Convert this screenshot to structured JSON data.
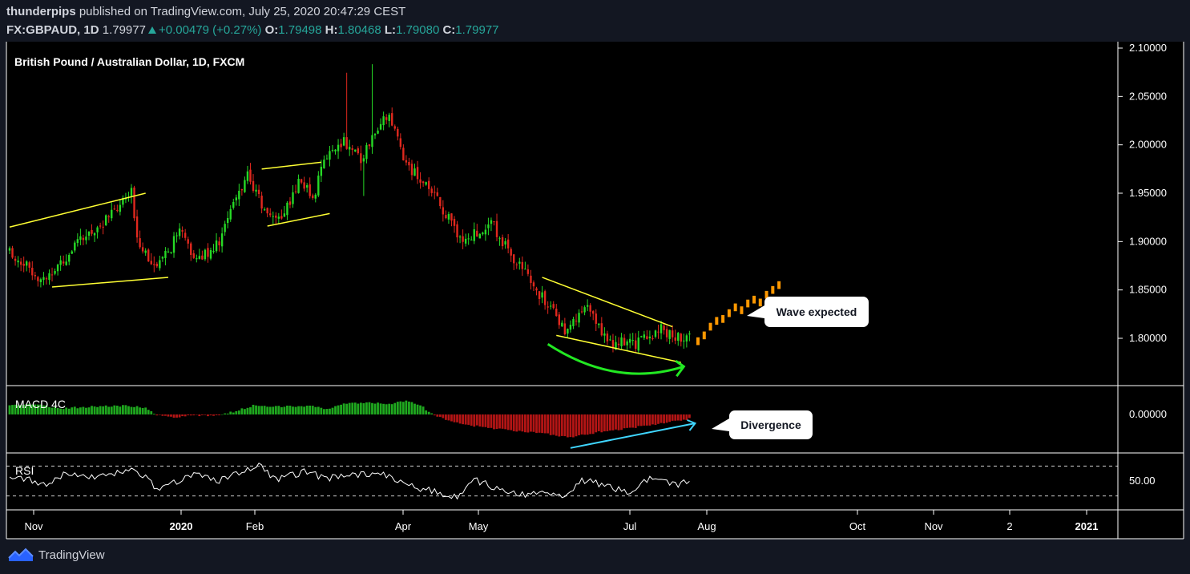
{
  "header": {
    "user": "thunderpips",
    "published_text": "published on TradingView.com, July 25, 2020 20:47:29 CEST",
    "symbol": "FX:GBPAUD, 1D",
    "last": "1.79977",
    "change": "+0.00479 (+0.27%)",
    "o_label": "O:",
    "o": "1.79498",
    "h_label": "H:",
    "h": "1.80468",
    "l_label": "L:",
    "l": "1.79080",
    "c_label": "C:",
    "c": "1.79977"
  },
  "brand": {
    "name": "TradingView"
  },
  "colors": {
    "bg": "#000000",
    "frame": "#131722",
    "up": "#26d926",
    "down": "#e0281e",
    "macd_up": "#1fa81f",
    "macd_down": "#b31515",
    "trend": "#ffff33",
    "forecast": "#ff9800",
    "arc": "#22e822",
    "divergence": "#3fd6ff",
    "rsi": "#ffffff"
  },
  "chart_data": {
    "type": "candlestick",
    "title": "British Pound / Australian Dollar, 1D, FXCM",
    "price_axis": [
      "2.10000",
      "2.05000",
      "2.00000",
      "1.95000",
      "1.90000",
      "1.85000",
      "1.80000"
    ],
    "ylim": [
      1.76,
      2.1
    ],
    "x_ticks": [
      "Nov",
      "2020",
      "Feb",
      "Apr",
      "May",
      "Jul",
      "Aug",
      "Oct",
      "Nov",
      "2",
      "2021"
    ],
    "anchors": [
      {
        "i": 0,
        "close": 1.89
      },
      {
        "i": 12,
        "close": 1.86
      },
      {
        "i": 25,
        "close": 1.9
      },
      {
        "i": 37,
        "close": 1.93
      },
      {
        "i": 43,
        "close": 1.95
      },
      {
        "i": 45,
        "close": 1.905
      },
      {
        "i": 52,
        "close": 1.87
      },
      {
        "i": 60,
        "close": 1.91
      },
      {
        "i": 66,
        "close": 1.88
      },
      {
        "i": 74,
        "close": 1.9
      },
      {
        "i": 80,
        "close": 1.945
      },
      {
        "i": 84,
        "close": 1.97
      },
      {
        "i": 90,
        "close": 1.93
      },
      {
        "i": 96,
        "close": 1.925
      },
      {
        "i": 103,
        "close": 1.965
      },
      {
        "i": 107,
        "close": 1.945
      },
      {
        "i": 112,
        "close": 1.99
      },
      {
        "i": 118,
        "close": 2.005
      },
      {
        "i": 124,
        "close": 1.985
      },
      {
        "i": 130,
        "close": 2.02
      },
      {
        "i": 134,
        "close": 2.03
      },
      {
        "i": 140,
        "close": 1.98
      },
      {
        "i": 148,
        "close": 1.955
      },
      {
        "i": 160,
        "close": 1.9
      },
      {
        "i": 170,
        "close": 1.92
      },
      {
        "i": 176,
        "close": 1.89
      },
      {
        "i": 186,
        "close": 1.85
      },
      {
        "i": 196,
        "close": 1.81
      },
      {
        "i": 204,
        "close": 1.83
      },
      {
        "i": 212,
        "close": 1.795
      },
      {
        "i": 222,
        "close": 1.795
      },
      {
        "i": 230,
        "close": 1.81
      },
      {
        "i": 235,
        "close": 1.8
      },
      {
        "i": 240,
        "close": 1.8
      }
    ],
    "forecast": [
      1.797,
      1.803,
      1.812,
      1.818,
      1.82,
      1.826,
      1.832,
      1.829,
      1.836,
      1.84,
      1.837,
      1.845,
      1.85,
      1.855
    ],
    "trendlines": [
      {
        "from": [
          0,
          1.915
        ],
        "to": [
          48,
          1.95
        ]
      },
      {
        "from": [
          15,
          1.853
        ],
        "to": [
          56,
          1.863
        ]
      },
      {
        "from": [
          89,
          1.975
        ],
        "to": [
          110,
          1.982
        ]
      },
      {
        "from": [
          91,
          1.916
        ],
        "to": [
          113,
          1.929
        ]
      },
      {
        "from": [
          188,
          1.863
        ],
        "to": [
          234,
          1.812
        ]
      },
      {
        "from": [
          193,
          1.803
        ],
        "to": [
          237,
          1.775
        ]
      }
    ],
    "annotations": [
      "Wave expected",
      "Divergence"
    ],
    "macd": {
      "label": "MACD 4C",
      "axis": [
        "0.00000"
      ],
      "anchors": [
        {
          "i": 0,
          "v": 0.01
        },
        {
          "i": 8,
          "v": 0.012
        },
        {
          "i": 18,
          "v": 0.007
        },
        {
          "i": 30,
          "v": 0.009
        },
        {
          "i": 40,
          "v": 0.01
        },
        {
          "i": 48,
          "v": 0.008
        },
        {
          "i": 52,
          "v": -0.001
        },
        {
          "i": 58,
          "v": -0.003
        },
        {
          "i": 66,
          "v": -0.001
        },
        {
          "i": 74,
          "v": -0.001
        },
        {
          "i": 80,
          "v": 0.004
        },
        {
          "i": 86,
          "v": 0.01
        },
        {
          "i": 96,
          "v": 0.009
        },
        {
          "i": 106,
          "v": 0.01
        },
        {
          "i": 112,
          "v": 0.006
        },
        {
          "i": 118,
          "v": 0.012
        },
        {
          "i": 126,
          "v": 0.014
        },
        {
          "i": 134,
          "v": 0.012
        },
        {
          "i": 140,
          "v": 0.016
        },
        {
          "i": 146,
          "v": 0.008
        },
        {
          "i": 150,
          "v": -0.002
        },
        {
          "i": 162,
          "v": -0.012
        },
        {
          "i": 176,
          "v": -0.018
        },
        {
          "i": 190,
          "v": -0.022
        },
        {
          "i": 198,
          "v": -0.026
        },
        {
          "i": 208,
          "v": -0.02
        },
        {
          "i": 222,
          "v": -0.014
        },
        {
          "i": 234,
          "v": -0.008
        },
        {
          "i": 240,
          "v": -0.005
        }
      ]
    },
    "rsi": {
      "label": "RSI",
      "axis": [
        "50.00"
      ],
      "anchors": [
        {
          "i": 0,
          "v": 58
        },
        {
          "i": 5,
          "v": 54
        },
        {
          "i": 12,
          "v": 44
        },
        {
          "i": 20,
          "v": 60
        },
        {
          "i": 30,
          "v": 56
        },
        {
          "i": 45,
          "v": 64
        },
        {
          "i": 52,
          "v": 40
        },
        {
          "i": 58,
          "v": 47
        },
        {
          "i": 66,
          "v": 61
        },
        {
          "i": 74,
          "v": 50
        },
        {
          "i": 84,
          "v": 66
        },
        {
          "i": 88,
          "v": 72
        },
        {
          "i": 94,
          "v": 52
        },
        {
          "i": 104,
          "v": 62
        },
        {
          "i": 112,
          "v": 54
        },
        {
          "i": 124,
          "v": 58
        },
        {
          "i": 132,
          "v": 60
        },
        {
          "i": 140,
          "v": 44
        },
        {
          "i": 150,
          "v": 36
        },
        {
          "i": 158,
          "v": 28
        },
        {
          "i": 164,
          "v": 52
        },
        {
          "i": 172,
          "v": 40
        },
        {
          "i": 180,
          "v": 31
        },
        {
          "i": 190,
          "v": 36
        },
        {
          "i": 196,
          "v": 28
        },
        {
          "i": 202,
          "v": 51
        },
        {
          "i": 210,
          "v": 45
        },
        {
          "i": 218,
          "v": 35
        },
        {
          "i": 226,
          "v": 53
        },
        {
          "i": 230,
          "v": 50
        },
        {
          "i": 235,
          "v": 44
        },
        {
          "i": 240,
          "v": 52
        }
      ]
    }
  }
}
